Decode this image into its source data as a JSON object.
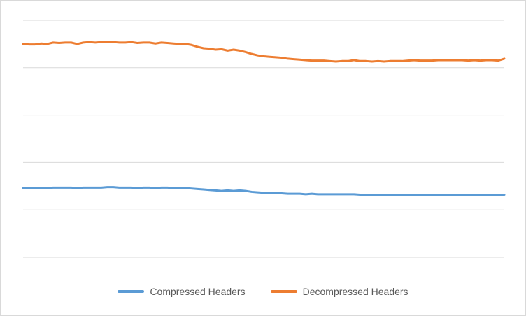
{
  "chart_data": {
    "type": "line",
    "title": "",
    "xlabel": "",
    "ylabel": "",
    "grid": true,
    "legend_position": "bottom",
    "ylim": [
      0,
      5
    ],
    "y_ticks": [
      0,
      1,
      2,
      3,
      4,
      5
    ],
    "x": [
      1,
      2,
      3,
      4,
      5,
      6,
      7,
      8,
      9,
      10,
      11,
      12,
      13,
      14,
      15,
      16,
      17,
      18,
      19,
      20,
      21,
      22,
      23,
      24,
      25,
      26,
      27,
      28,
      29,
      30,
      31,
      32,
      33,
      34,
      35,
      36,
      37,
      38,
      39,
      40,
      41,
      42,
      43,
      44,
      45,
      46,
      47,
      48,
      49,
      50,
      51,
      52,
      53,
      54,
      55,
      56,
      57,
      58,
      59,
      60,
      61,
      62,
      63,
      64,
      65,
      66,
      67,
      68,
      69,
      70,
      71,
      72,
      73,
      74,
      75,
      76,
      77,
      78,
      79,
      80,
      81
    ],
    "series": [
      {
        "name": "Compressed Headers",
        "color": "#5b9bd5",
        "values": [
          1.46,
          1.46,
          1.46,
          1.46,
          1.46,
          1.47,
          1.47,
          1.47,
          1.47,
          1.46,
          1.47,
          1.47,
          1.47,
          1.47,
          1.48,
          1.48,
          1.47,
          1.47,
          1.47,
          1.46,
          1.47,
          1.47,
          1.46,
          1.47,
          1.47,
          1.46,
          1.46,
          1.46,
          1.45,
          1.44,
          1.43,
          1.42,
          1.41,
          1.4,
          1.41,
          1.4,
          1.41,
          1.4,
          1.38,
          1.37,
          1.36,
          1.36,
          1.36,
          1.35,
          1.34,
          1.34,
          1.34,
          1.33,
          1.34,
          1.33,
          1.33,
          1.33,
          1.33,
          1.33,
          1.33,
          1.33,
          1.32,
          1.32,
          1.32,
          1.32,
          1.32,
          1.31,
          1.32,
          1.32,
          1.31,
          1.32,
          1.32,
          1.31,
          1.31,
          1.31,
          1.31,
          1.31,
          1.31,
          1.31,
          1.31,
          1.31,
          1.31,
          1.31,
          1.31,
          1.31,
          1.32
        ]
      },
      {
        "name": "Decompressed Headers",
        "color": "#ed7d31",
        "values": [
          4.5,
          4.49,
          4.49,
          4.51,
          4.5,
          4.53,
          4.52,
          4.53,
          4.53,
          4.5,
          4.53,
          4.54,
          4.53,
          4.54,
          4.55,
          4.54,
          4.53,
          4.53,
          4.54,
          4.52,
          4.53,
          4.53,
          4.51,
          4.53,
          4.52,
          4.51,
          4.5,
          4.5,
          4.48,
          4.44,
          4.41,
          4.4,
          4.38,
          4.39,
          4.36,
          4.38,
          4.36,
          4.33,
          4.29,
          4.26,
          4.24,
          4.23,
          4.22,
          4.21,
          4.19,
          4.18,
          4.17,
          4.16,
          4.15,
          4.15,
          4.15,
          4.14,
          4.13,
          4.14,
          4.14,
          4.16,
          4.14,
          4.14,
          4.13,
          4.14,
          4.13,
          4.14,
          4.14,
          4.14,
          4.15,
          4.16,
          4.15,
          4.15,
          4.15,
          4.16,
          4.16,
          4.16,
          4.16,
          4.16,
          4.15,
          4.16,
          4.15,
          4.16,
          4.16,
          4.15,
          4.19
        ]
      }
    ]
  }
}
